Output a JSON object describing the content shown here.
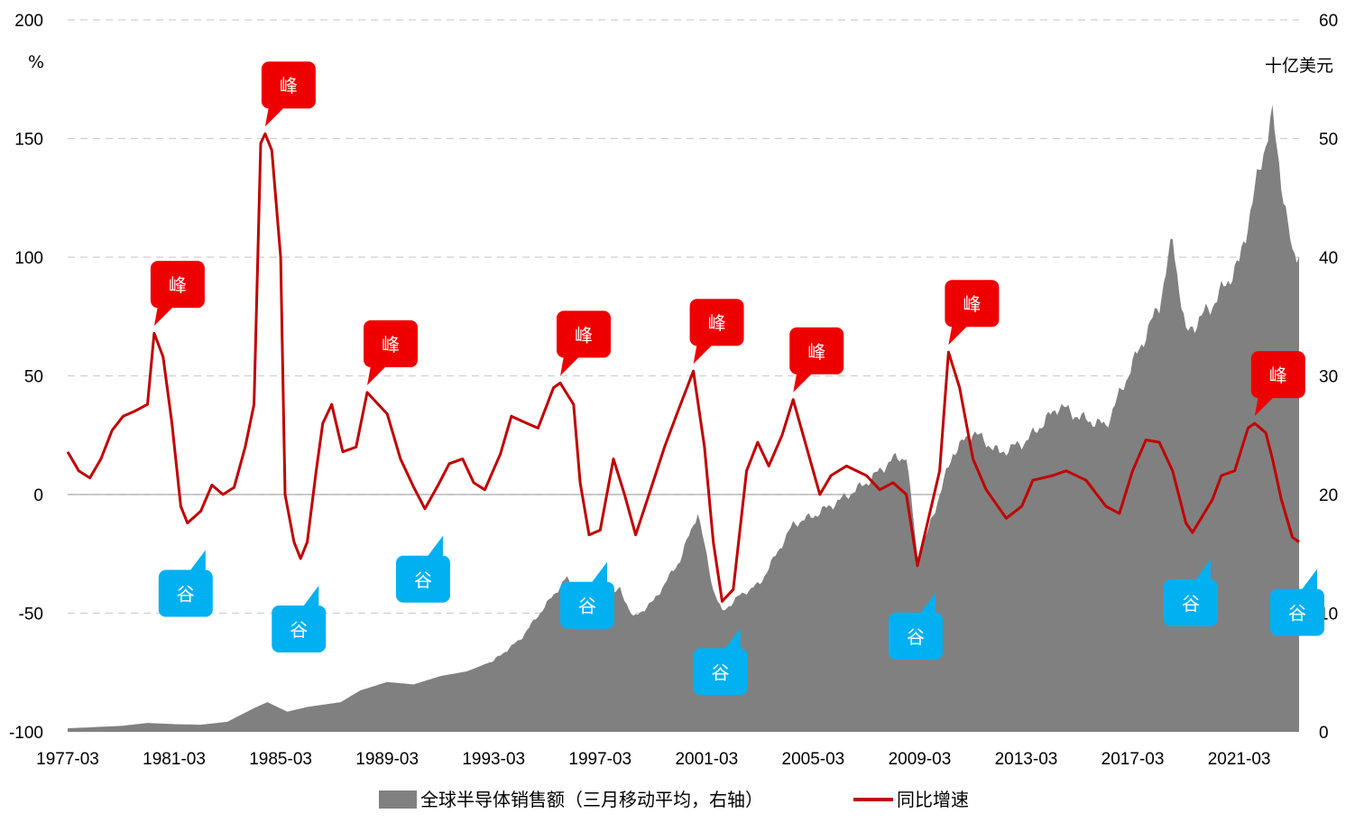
{
  "chart_data": {
    "type": "area+line",
    "title": "",
    "left_axis": {
      "unit_label": "%",
      "ticks": [
        "200",
        "150",
        "100",
        "50",
        "0",
        "-50",
        "-100"
      ],
      "ylim": [
        -100,
        200
      ]
    },
    "right_axis": {
      "unit_label": "十亿美元",
      "ticks": [
        "60",
        "50",
        "40",
        "30",
        "20",
        "10",
        "0"
      ],
      "ylim": [
        0,
        60
      ]
    },
    "x_tick_labels": [
      "1977-03",
      "1981-03",
      "1985-03",
      "1989-03",
      "1993-03",
      "1997-03",
      "2001-03",
      "2005-03",
      "2009-03",
      "2013-03",
      "2017-03",
      "2021-03"
    ],
    "x_range": [
      "1977-03",
      "2023-06"
    ],
    "grid": "horizontal dashed",
    "legend_position": "bottom",
    "colors": {
      "sales": "#808080",
      "yoy": "#c00000",
      "peak": "#ee0000",
      "trough": "#00b0f0"
    },
    "series": [
      {
        "name": "全球半导体销售额（三月移动平均，右轴）",
        "axis": "right",
        "kind": "area",
        "points": [
          [
            "1977-03",
            0.3
          ],
          [
            "1979-03",
            0.5
          ],
          [
            "1980-03",
            0.75
          ],
          [
            "1981-03",
            0.65
          ],
          [
            "1982-03",
            0.6
          ],
          [
            "1983-03",
            0.85
          ],
          [
            "1984-03",
            2.0
          ],
          [
            "1984-09",
            2.5
          ],
          [
            "1985-06",
            1.7
          ],
          [
            "1986-03",
            2.1
          ],
          [
            "1987-06",
            2.5
          ],
          [
            "1988-03",
            3.5
          ],
          [
            "1989-03",
            4.2
          ],
          [
            "1990-03",
            4.0
          ],
          [
            "1991-03",
            4.7
          ],
          [
            "1992-03",
            5.1
          ],
          [
            "1993-03",
            6.0
          ],
          [
            "1994-03",
            7.8
          ],
          [
            "1995-03",
            10.8
          ],
          [
            "1995-12",
            13.0
          ],
          [
            "1996-06",
            10.5
          ],
          [
            "1997-03",
            11.0
          ],
          [
            "1997-12",
            12.0
          ],
          [
            "1998-06",
            9.6
          ],
          [
            "1999-03",
            11.0
          ],
          [
            "2000-03",
            14.5
          ],
          [
            "2000-11",
            18.5
          ],
          [
            "2001-06",
            12.0
          ],
          [
            "2001-10",
            10.1
          ],
          [
            "2002-06",
            11.5
          ],
          [
            "2003-03",
            12.5
          ],
          [
            "2004-06",
            17.5
          ],
          [
            "2005-03",
            18.2
          ],
          [
            "2006-03",
            19.5
          ],
          [
            "2007-03",
            21.0
          ],
          [
            "2008-03",
            23.0
          ],
          [
            "2008-09",
            23.2
          ],
          [
            "2009-02",
            14.8
          ],
          [
            "2009-06",
            16.5
          ],
          [
            "2010-06",
            23.5
          ],
          [
            "2011-03",
            25.3
          ],
          [
            "2012-03",
            23.5
          ],
          [
            "2013-03",
            24.5
          ],
          [
            "2014-06",
            27.5
          ],
          [
            "2015-03,",
            26.5
          ],
          [
            "2016-03",
            25.8
          ],
          [
            "2017-03",
            31.0
          ],
          [
            "2018-03",
            36.0
          ],
          [
            "2018-09",
            41.5
          ],
          [
            "2019-03",
            33.5
          ],
          [
            "2020-03",
            36.0
          ],
          [
            "2021-03",
            39.5
          ],
          [
            "2022-03",
            49.8
          ],
          [
            "2022-06",
            51.8
          ],
          [
            "2023-03",
            40.0
          ],
          [
            "2023-06",
            40.5
          ]
        ]
      },
      {
        "name": "同比增速",
        "axis": "left",
        "kind": "line",
        "points": [
          [
            "1977-03",
            18
          ],
          [
            "1977-08",
            10
          ],
          [
            "1978-01",
            7
          ],
          [
            "1978-06",
            15
          ],
          [
            "1978-11",
            27
          ],
          [
            "1979-04",
            33
          ],
          [
            "1979-09",
            35
          ],
          [
            "1980-03",
            38
          ],
          [
            "1980-06",
            68
          ],
          [
            "1980-10",
            58
          ],
          [
            "1981-02",
            30
          ],
          [
            "1981-06",
            -5
          ],
          [
            "1981-09",
            -12
          ],
          [
            "1982-03",
            -7
          ],
          [
            "1982-08",
            4
          ],
          [
            "1983-01",
            0
          ],
          [
            "1983-06",
            3
          ],
          [
            "1983-11",
            20
          ],
          [
            "1984-03",
            38
          ],
          [
            "1984-06",
            148
          ],
          [
            "1984-08",
            152
          ],
          [
            "1984-11",
            145
          ],
          [
            "1985-03",
            100
          ],
          [
            "1985-05",
            0
          ],
          [
            "1985-09",
            -20
          ],
          [
            "1985-12",
            -27
          ],
          [
            "1986-03",
            -20
          ],
          [
            "1986-07",
            10
          ],
          [
            "1986-10",
            30
          ],
          [
            "1987-02",
            38
          ],
          [
            "1987-07",
            18
          ],
          [
            "1988-01",
            20
          ],
          [
            "1988-06",
            43
          ],
          [
            "1988-11",
            38
          ],
          [
            "1989-03",
            34
          ],
          [
            "1989-09",
            15
          ],
          [
            "1990-03",
            3
          ],
          [
            "1990-08",
            -6
          ],
          [
            "1991-02",
            4
          ],
          [
            "1991-07",
            13
          ],
          [
            "1992-01",
            15
          ],
          [
            "1992-06",
            5
          ],
          [
            "1992-11",
            2
          ],
          [
            "1993-06",
            17
          ],
          [
            "1993-11",
            33
          ],
          [
            "1994-06",
            30
          ],
          [
            "1994-11",
            28
          ],
          [
            "1995-06",
            45
          ],
          [
            "1995-09",
            47
          ],
          [
            "1996-03",
            38
          ],
          [
            "1996-06",
            5
          ],
          [
            "1996-10",
            -17
          ],
          [
            "1997-03",
            -15
          ],
          [
            "1997-09",
            15
          ],
          [
            "1998-02",
            0
          ],
          [
            "1998-07",
            -17
          ],
          [
            "1999-01",
            0
          ],
          [
            "1999-08",
            20
          ],
          [
            "2000-02",
            35
          ],
          [
            "2000-09",
            52
          ],
          [
            "2001-02",
            20
          ],
          [
            "2001-06",
            -20
          ],
          [
            "2001-10",
            -45
          ],
          [
            "2002-03",
            -40
          ],
          [
            "2002-09",
            10
          ],
          [
            "2003-02",
            22
          ],
          [
            "2003-07",
            12
          ],
          [
            "2004-01",
            25
          ],
          [
            "2004-06",
            40
          ],
          [
            "2004-12",
            20
          ],
          [
            "2005-06",
            0
          ],
          [
            "2005-11",
            8
          ],
          [
            "2006-06",
            12
          ],
          [
            "2007-03",
            8
          ],
          [
            "2007-09",
            2
          ],
          [
            "2008-03",
            5
          ],
          [
            "2008-09",
            0
          ],
          [
            "2009-02",
            -30
          ],
          [
            "2009-07",
            -10
          ],
          [
            "2009-12",
            10
          ],
          [
            "2010-04",
            60
          ],
          [
            "2010-09",
            45
          ],
          [
            "2011-03",
            15
          ],
          [
            "2011-09",
            2
          ],
          [
            "2012-06",
            -10
          ],
          [
            "2013-01",
            -5
          ],
          [
            "2013-06",
            6
          ],
          [
            "2014-03",
            8
          ],
          [
            "2014-09",
            10
          ],
          [
            "2015-06",
            6
          ],
          [
            "2016-03",
            -5
          ],
          [
            "2016-09",
            -8
          ],
          [
            "2017-03",
            10
          ],
          [
            "2017-09",
            23
          ],
          [
            "2018-03",
            22
          ],
          [
            "2018-09",
            10
          ],
          [
            "2019-03",
            -12
          ],
          [
            "2019-06",
            -16
          ],
          [
            "2020-03",
            -2
          ],
          [
            "2020-07",
            8
          ],
          [
            "2021-01",
            10
          ],
          [
            "2021-07",
            28
          ],
          [
            "2021-10",
            30
          ],
          [
            "2022-03",
            26
          ],
          [
            "2022-06",
            15
          ],
          [
            "2022-10",
            -2
          ],
          [
            "2023-03",
            -18
          ],
          [
            "2023-06",
            -20
          ]
        ]
      }
    ],
    "annotations": [
      {
        "label": "峰",
        "type": "peak",
        "x": "1980-06",
        "y": 68
      },
      {
        "label": "峰",
        "type": "peak",
        "x": "1984-08",
        "y": 152
      },
      {
        "label": "峰",
        "type": "peak",
        "x": "1988-06",
        "y": 43
      },
      {
        "label": "峰",
        "type": "peak",
        "x": "1995-09",
        "y": 47
      },
      {
        "label": "峰",
        "type": "peak",
        "x": "2000-09",
        "y": 52
      },
      {
        "label": "峰",
        "type": "peak",
        "x": "2004-06",
        "y": 40
      },
      {
        "label": "峰",
        "type": "peak",
        "x": "2010-04",
        "y": 60
      },
      {
        "label": "峰",
        "type": "peak",
        "x": "2021-10",
        "y": 30
      },
      {
        "label": "谷",
        "type": "trough",
        "x": "1981-09",
        "y": -12
      },
      {
        "label": "谷",
        "type": "trough",
        "x": "1985-12",
        "y": -27
      },
      {
        "label": "谷",
        "type": "trough",
        "x": "1990-08",
        "y": -6
      },
      {
        "label": "谷",
        "type": "trough",
        "x": "1996-10",
        "y": -17
      },
      {
        "label": "谷",
        "type": "trough",
        "x": "2001-10",
        "y": -45
      },
      {
        "label": "谷",
        "type": "trough",
        "x": "2009-02",
        "y": -30
      },
      {
        "label": "谷",
        "type": "trough",
        "x": "2019-06",
        "y": -16
      },
      {
        "label": "谷",
        "type": "trough",
        "x": "2023-06",
        "y": -20
      }
    ]
  }
}
